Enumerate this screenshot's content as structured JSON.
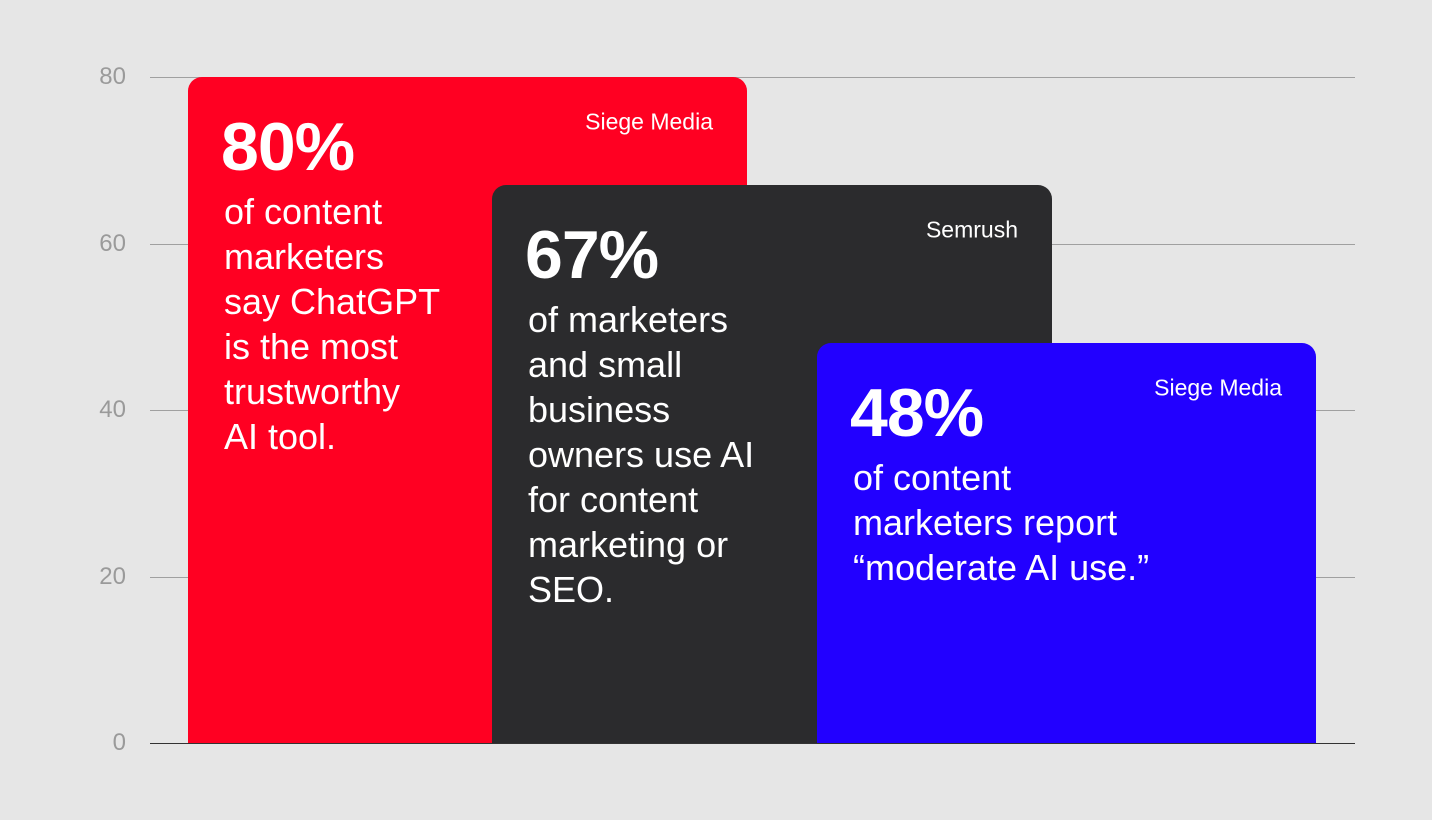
{
  "chart_data": {
    "type": "bar",
    "values": [
      80,
      67,
      48
    ],
    "value_labels": [
      "80%",
      "67%",
      "48%"
    ],
    "descriptions": [
      [
        "of content",
        "marketers",
        "say ChatGPT",
        "is the most",
        "trustworthy",
        "AI tool."
      ],
      [
        "of marketers",
        "and small",
        "business",
        "owners use AI",
        "for content",
        "marketing or",
        "SEO."
      ],
      [
        "of content",
        "marketers report",
        "“moderate AI use.”"
      ]
    ],
    "sources": [
      "Siege Media",
      "Semrush",
      "Siege Media"
    ],
    "colors": [
      "#ff0022",
      "#2b2b2d",
      "#2200ff"
    ],
    "ylim": [
      0,
      80
    ],
    "yticks": [
      0,
      20,
      40,
      60,
      80
    ],
    "grid": true
  }
}
